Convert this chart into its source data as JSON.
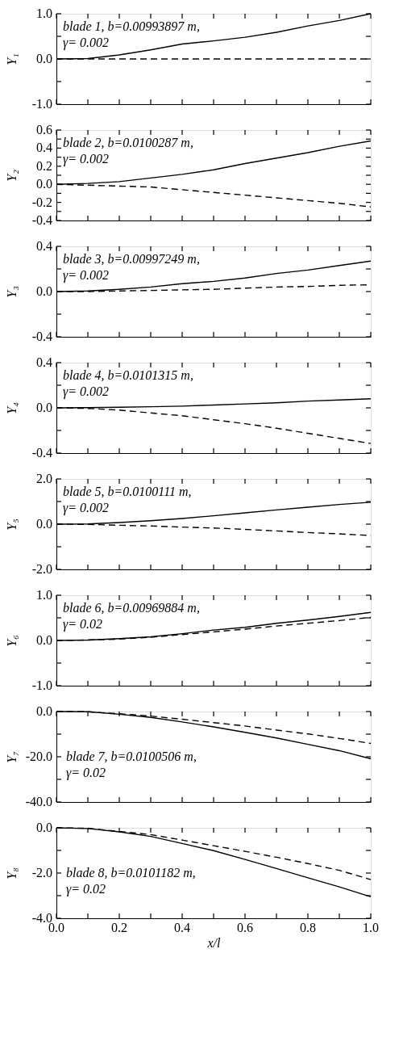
{
  "chart_data": [
    {
      "type": "line",
      "ylabel": "Y₁",
      "annotations": [
        "blade 1, b=0.00993897 m,",
        "γ= 0.002"
      ],
      "x": [
        0.0,
        0.1,
        0.2,
        0.3,
        0.4,
        0.5,
        0.6,
        0.7,
        0.8,
        0.9,
        1.0
      ],
      "xlim": [
        0.0,
        1.0
      ],
      "xticks": [
        {
          "value": 0.0,
          "label": null
        },
        {
          "value": 0.1,
          "label": null
        },
        {
          "value": 0.2,
          "label": null
        },
        {
          "value": 0.3,
          "label": null
        },
        {
          "value": 0.4,
          "label": null
        },
        {
          "value": 0.5,
          "label": null
        },
        {
          "value": 0.6,
          "label": null
        },
        {
          "value": 0.7,
          "label": null
        },
        {
          "value": 0.8,
          "label": null
        },
        {
          "value": 0.9,
          "label": null
        },
        {
          "value": 1.0,
          "label": null
        }
      ],
      "ylim": [
        -1.0,
        1.0
      ],
      "yticks": [
        {
          "value": -1.0,
          "label": "-1.0"
        },
        {
          "value": -0.5,
          "label": null
        },
        {
          "value": 0.0,
          "label": "0.0"
        },
        {
          "value": 0.5,
          "label": null
        },
        {
          "value": 1.0,
          "label": "1.0"
        }
      ],
      "tick_labels": "y",
      "series": [
        {
          "color": "#000000",
          "line_style": "solid",
          "values": [
            0.0,
            0.01,
            0.09,
            0.2,
            0.33,
            0.4,
            0.48,
            0.59,
            0.73,
            0.85,
            1.0
          ]
        },
        {
          "color": "#000000",
          "line_style": "dashed",
          "values": [
            0.0,
            0.0,
            0.0,
            0.0,
            0.0,
            0.0,
            0.0,
            0.0,
            0.0,
            0.0,
            0.0
          ]
        }
      ]
    },
    {
      "type": "line",
      "ylabel": "Y₂",
      "annotations": [
        "blade 2, b=0.0100287 m,",
        "γ= 0.002"
      ],
      "x": [
        0.0,
        0.1,
        0.2,
        0.3,
        0.4,
        0.5,
        0.6,
        0.7,
        0.8,
        0.9,
        1.0
      ],
      "xlim": [
        0.0,
        1.0
      ],
      "xticks": [
        {
          "value": 0.0,
          "label": null
        },
        {
          "value": 0.1,
          "label": null
        },
        {
          "value": 0.2,
          "label": null
        },
        {
          "value": 0.3,
          "label": null
        },
        {
          "value": 0.4,
          "label": null
        },
        {
          "value": 0.5,
          "label": null
        },
        {
          "value": 0.6,
          "label": null
        },
        {
          "value": 0.7,
          "label": null
        },
        {
          "value": 0.8,
          "label": null
        },
        {
          "value": 0.9,
          "label": null
        },
        {
          "value": 1.0,
          "label": null
        }
      ],
      "ylim": [
        -0.4,
        0.6
      ],
      "yticks": [
        {
          "value": -0.4,
          "label": "-0.4"
        },
        {
          "value": -0.3,
          "label": null
        },
        {
          "value": -0.2,
          "label": "-0.2"
        },
        {
          "value": -0.1,
          "label": null
        },
        {
          "value": 0.0,
          "label": "0.0"
        },
        {
          "value": 0.1,
          "label": null
        },
        {
          "value": 0.2,
          "label": "0.2"
        },
        {
          "value": 0.3,
          "label": null
        },
        {
          "value": 0.4,
          "label": "0.4"
        },
        {
          "value": 0.5,
          "label": null
        },
        {
          "value": 0.6,
          "label": "0.6"
        }
      ],
      "tick_labels": "y",
      "series": [
        {
          "color": "#000000",
          "line_style": "solid",
          "values": [
            0.0,
            0.01,
            0.03,
            0.07,
            0.11,
            0.16,
            0.23,
            0.29,
            0.35,
            0.42,
            0.48
          ]
        },
        {
          "color": "#000000",
          "line_style": "dashed",
          "values": [
            0.0,
            -0.01,
            -0.02,
            -0.03,
            -0.06,
            -0.09,
            -0.12,
            -0.15,
            -0.18,
            -0.21,
            -0.25
          ]
        }
      ]
    },
    {
      "type": "line",
      "ylabel": "Y₃",
      "annotations": [
        "blade 3, b=0.00997249 m,",
        "γ= 0.002"
      ],
      "x": [
        0.0,
        0.1,
        0.2,
        0.3,
        0.4,
        0.5,
        0.6,
        0.7,
        0.8,
        0.9,
        1.0
      ],
      "xlim": [
        0.0,
        1.0
      ],
      "xticks": [
        {
          "value": 0.0,
          "label": null
        },
        {
          "value": 0.1,
          "label": null
        },
        {
          "value": 0.2,
          "label": null
        },
        {
          "value": 0.3,
          "label": null
        },
        {
          "value": 0.4,
          "label": null
        },
        {
          "value": 0.5,
          "label": null
        },
        {
          "value": 0.6,
          "label": null
        },
        {
          "value": 0.7,
          "label": null
        },
        {
          "value": 0.8,
          "label": null
        },
        {
          "value": 0.9,
          "label": null
        },
        {
          "value": 1.0,
          "label": null
        }
      ],
      "ylim": [
        -0.4,
        0.4
      ],
      "yticks": [
        {
          "value": -0.4,
          "label": "-0.4"
        },
        {
          "value": -0.2,
          "label": null
        },
        {
          "value": 0.0,
          "label": "0.0"
        },
        {
          "value": 0.2,
          "label": null
        },
        {
          "value": 0.4,
          "label": "0.4"
        }
      ],
      "tick_labels": "y",
      "series": [
        {
          "color": "#000000",
          "line_style": "solid",
          "values": [
            0.0,
            0.005,
            0.02,
            0.04,
            0.07,
            0.09,
            0.12,
            0.16,
            0.19,
            0.23,
            0.27
          ]
        },
        {
          "color": "#000000",
          "line_style": "dashed",
          "values": [
            0.0,
            0.0,
            0.005,
            0.01,
            0.015,
            0.02,
            0.03,
            0.04,
            0.045,
            0.055,
            0.06
          ]
        }
      ]
    },
    {
      "type": "line",
      "ylabel": "Y₄",
      "annotations": [
        "blade 4, b=0.0101315 m,",
        "γ= 0.002"
      ],
      "x": [
        0.0,
        0.1,
        0.2,
        0.3,
        0.4,
        0.5,
        0.6,
        0.7,
        0.8,
        0.9,
        1.0
      ],
      "xlim": [
        0.0,
        1.0
      ],
      "xticks": [
        {
          "value": 0.0,
          "label": null
        },
        {
          "value": 0.1,
          "label": null
        },
        {
          "value": 0.2,
          "label": null
        },
        {
          "value": 0.3,
          "label": null
        },
        {
          "value": 0.4,
          "label": null
        },
        {
          "value": 0.5,
          "label": null
        },
        {
          "value": 0.6,
          "label": null
        },
        {
          "value": 0.7,
          "label": null
        },
        {
          "value": 0.8,
          "label": null
        },
        {
          "value": 0.9,
          "label": null
        },
        {
          "value": 1.0,
          "label": null
        }
      ],
      "ylim": [
        -0.4,
        0.4
      ],
      "yticks": [
        {
          "value": -0.4,
          "label": "-0.4"
        },
        {
          "value": -0.2,
          "label": null
        },
        {
          "value": 0.0,
          "label": "0.0"
        },
        {
          "value": 0.2,
          "label": null
        },
        {
          "value": 0.4,
          "label": "0.4"
        }
      ],
      "tick_labels": "y",
      "series": [
        {
          "color": "#000000",
          "line_style": "solid",
          "values": [
            0.0,
            0.002,
            0.005,
            0.01,
            0.015,
            0.025,
            0.035,
            0.045,
            0.06,
            0.07,
            0.08
          ]
        },
        {
          "color": "#000000",
          "line_style": "dashed",
          "values": [
            0.0,
            -0.005,
            -0.02,
            -0.045,
            -0.07,
            -0.105,
            -0.14,
            -0.18,
            -0.225,
            -0.27,
            -0.315
          ]
        }
      ]
    },
    {
      "type": "line",
      "ylabel": "Y₅",
      "annotations": [
        "blade 5, b=0.0100111 m,",
        "γ= 0.002"
      ],
      "x": [
        0.0,
        0.1,
        0.2,
        0.3,
        0.4,
        0.5,
        0.6,
        0.7,
        0.8,
        0.9,
        1.0
      ],
      "xlim": [
        0.0,
        1.0
      ],
      "xticks": [
        {
          "value": 0.0,
          "label": null
        },
        {
          "value": 0.1,
          "label": null
        },
        {
          "value": 0.2,
          "label": null
        },
        {
          "value": 0.3,
          "label": null
        },
        {
          "value": 0.4,
          "label": null
        },
        {
          "value": 0.5,
          "label": null
        },
        {
          "value": 0.6,
          "label": null
        },
        {
          "value": 0.7,
          "label": null
        },
        {
          "value": 0.8,
          "label": null
        },
        {
          "value": 0.9,
          "label": null
        },
        {
          "value": 1.0,
          "label": null
        }
      ],
      "ylim": [
        -2.0,
        2.0
      ],
      "yticks": [
        {
          "value": -2.0,
          "label": "-2.0"
        },
        {
          "value": -1.0,
          "label": null
        },
        {
          "value": 0.0,
          "label": "0.0"
        },
        {
          "value": 1.0,
          "label": null
        },
        {
          "value": 2.0,
          "label": "2.0"
        }
      ],
      "tick_labels": "y",
      "series": [
        {
          "color": "#000000",
          "line_style": "solid",
          "values": [
            0.0,
            0.01,
            0.07,
            0.15,
            0.25,
            0.37,
            0.5,
            0.63,
            0.75,
            0.87,
            0.97
          ]
        },
        {
          "color": "#000000",
          "line_style": "dashed",
          "values": [
            0.0,
            -0.01,
            -0.05,
            -0.08,
            -0.13,
            -0.17,
            -0.23,
            -0.3,
            -0.37,
            -0.43,
            -0.5
          ]
        }
      ]
    },
    {
      "type": "line",
      "ylabel": "Y₆",
      "annotations": [
        "blade 6, b=0.00969884 m,",
        "γ= 0.02"
      ],
      "x": [
        0.0,
        0.1,
        0.2,
        0.3,
        0.4,
        0.5,
        0.6,
        0.7,
        0.8,
        0.9,
        1.0
      ],
      "xlim": [
        0.0,
        1.0
      ],
      "xticks": [
        {
          "value": 0.0,
          "label": null
        },
        {
          "value": 0.1,
          "label": null
        },
        {
          "value": 0.2,
          "label": null
        },
        {
          "value": 0.3,
          "label": null
        },
        {
          "value": 0.4,
          "label": null
        },
        {
          "value": 0.5,
          "label": null
        },
        {
          "value": 0.6,
          "label": null
        },
        {
          "value": 0.7,
          "label": null
        },
        {
          "value": 0.8,
          "label": null
        },
        {
          "value": 0.9,
          "label": null
        },
        {
          "value": 1.0,
          "label": null
        }
      ],
      "ylim": [
        -1.0,
        1.0
      ],
      "yticks": [
        {
          "value": -1.0,
          "label": "-1.0"
        },
        {
          "value": -0.5,
          "label": null
        },
        {
          "value": 0.0,
          "label": "0.0"
        },
        {
          "value": 0.5,
          "label": null
        },
        {
          "value": 1.0,
          "label": "1.0"
        }
      ],
      "tick_labels": "y",
      "series": [
        {
          "color": "#000000",
          "line_style": "solid",
          "values": [
            0.0,
            0.01,
            0.04,
            0.08,
            0.15,
            0.23,
            0.29,
            0.38,
            0.45,
            0.53,
            0.62
          ]
        },
        {
          "color": "#000000",
          "line_style": "dashed",
          "values": [
            0.0,
            0.01,
            0.03,
            0.07,
            0.13,
            0.19,
            0.25,
            0.32,
            0.38,
            0.44,
            0.51
          ]
        }
      ]
    },
    {
      "type": "line",
      "ylabel": "Y₇",
      "annotations": [
        "blade 7, b=0.0100506 m,",
        "γ= 0.02"
      ],
      "x": [
        0.0,
        0.1,
        0.2,
        0.3,
        0.4,
        0.5,
        0.6,
        0.7,
        0.8,
        0.9,
        1.0
      ],
      "xlim": [
        0.0,
        1.0
      ],
      "xticks": [
        {
          "value": 0.0,
          "label": null
        },
        {
          "value": 0.1,
          "label": null
        },
        {
          "value": 0.2,
          "label": null
        },
        {
          "value": 0.3,
          "label": null
        },
        {
          "value": 0.4,
          "label": null
        },
        {
          "value": 0.5,
          "label": null
        },
        {
          "value": 0.6,
          "label": null
        },
        {
          "value": 0.7,
          "label": null
        },
        {
          "value": 0.8,
          "label": null
        },
        {
          "value": 0.9,
          "label": null
        },
        {
          "value": 1.0,
          "label": null
        }
      ],
      "ylim": [
        -40.0,
        0.0
      ],
      "yticks": [
        {
          "value": -40.0,
          "label": "-40.0"
        },
        {
          "value": -30.0,
          "label": null
        },
        {
          "value": -20.0,
          "label": "-20.0"
        },
        {
          "value": -10.0,
          "label": null
        },
        {
          "value": 0.0,
          "label": "0.0"
        }
      ],
      "tick_labels": "y",
      "series": [
        {
          "color": "#000000",
          "line_style": "solid",
          "values": [
            0.0,
            -0.1,
            -1.2,
            -2.6,
            -4.6,
            -6.8,
            -9.2,
            -11.7,
            -14.5,
            -17.3,
            -20.9
          ]
        },
        {
          "color": "#000000",
          "line_style": "dashed",
          "values": [
            0.0,
            -0.1,
            -1.0,
            -2.0,
            -3.4,
            -4.9,
            -6.4,
            -8.2,
            -9.9,
            -11.9,
            -14.1
          ]
        }
      ]
    },
    {
      "type": "line",
      "ylabel": "Y₈",
      "xlabel": "x/l",
      "annotations": [
        "blade 8, b=0.0101182 m,",
        "γ= 0.02"
      ],
      "x": [
        0.0,
        0.1,
        0.2,
        0.3,
        0.4,
        0.5,
        0.6,
        0.7,
        0.8,
        0.9,
        1.0
      ],
      "xlim": [
        0.0,
        1.0
      ],
      "xticks": [
        {
          "value": 0.0,
          "label": "0.0"
        },
        {
          "value": 0.1,
          "label": null
        },
        {
          "value": 0.2,
          "label": "0.2"
        },
        {
          "value": 0.3,
          "label": null
        },
        {
          "value": 0.4,
          "label": "0.4"
        },
        {
          "value": 0.5,
          "label": null
        },
        {
          "value": 0.6,
          "label": "0.6"
        },
        {
          "value": 0.7,
          "label": null
        },
        {
          "value": 0.8,
          "label": "0.8"
        },
        {
          "value": 0.9,
          "label": null
        },
        {
          "value": 1.0,
          "label": "1.0"
        }
      ],
      "ylim": [
        -4.0,
        0.0
      ],
      "yticks": [
        {
          "value": -4.0,
          "label": "-4.0"
        },
        {
          "value": -3.0,
          "label": null
        },
        {
          "value": -2.0,
          "label": "-2.0"
        },
        {
          "value": -1.0,
          "label": null
        },
        {
          "value": 0.0,
          "label": "0.0"
        }
      ],
      "series": [
        {
          "color": "#000000",
          "line_style": "solid",
          "values": [
            0.0,
            -0.03,
            -0.18,
            -0.38,
            -0.69,
            -1.01,
            -1.4,
            -1.8,
            -2.21,
            -2.61,
            -3.05
          ]
        },
        {
          "color": "#000000",
          "line_style": "dashed",
          "values": [
            0.0,
            -0.02,
            -0.16,
            -0.3,
            -0.54,
            -0.79,
            -1.04,
            -1.3,
            -1.58,
            -1.88,
            -2.29
          ]
        }
      ]
    }
  ]
}
